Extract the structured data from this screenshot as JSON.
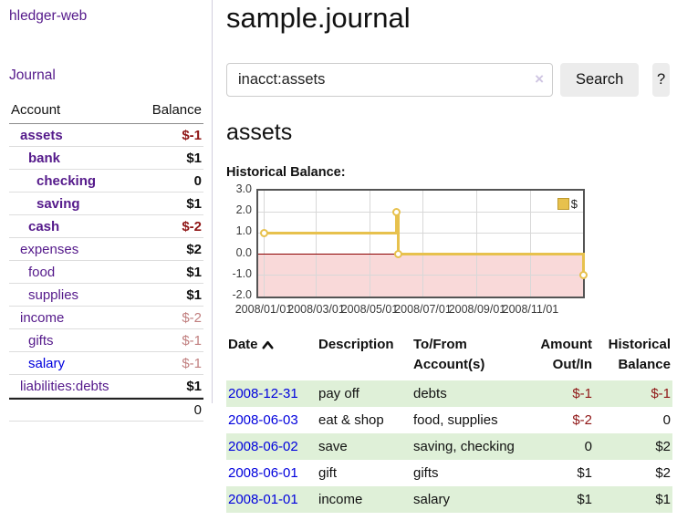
{
  "app_title": "hledger-web",
  "sidebar": {
    "journal_link": "Journal",
    "accounts": {
      "col_account": "Account",
      "col_balance": "Balance",
      "rows": [
        {
          "name": "assets",
          "balance": "$-1"
        },
        {
          "name": "bank",
          "balance": "$1"
        },
        {
          "name": "checking",
          "balance": "0"
        },
        {
          "name": "saving",
          "balance": "$1"
        },
        {
          "name": "cash",
          "balance": "$-2"
        },
        {
          "name": "expenses",
          "balance": "$2"
        },
        {
          "name": "food",
          "balance": "$1"
        },
        {
          "name": "supplies",
          "balance": "$1"
        },
        {
          "name": "income",
          "balance": "$-2"
        },
        {
          "name": "gifts",
          "balance": "$-1"
        },
        {
          "name": "salary",
          "balance": "$-1"
        },
        {
          "name": "liabilities:debts",
          "balance": "$1"
        }
      ],
      "total": "0"
    }
  },
  "main": {
    "page_title": "sample.journal",
    "search": {
      "value": "inacct:assets",
      "clear_icon": "×",
      "search_button": "Search",
      "help_button": "?"
    },
    "account_heading": "assets",
    "section_label": "Historical Balance:"
  },
  "chart_data": {
    "type": "line",
    "step": true,
    "title": "",
    "xlabel": "",
    "ylabel": "",
    "legend": "$",
    "legend_position": "top-right",
    "grid": true,
    "series": [
      {
        "name": "$",
        "color": "#e7c14d",
        "points": [
          {
            "x": "2008-01-01",
            "y": 1
          },
          {
            "x": "2008-06-01",
            "y": 2
          },
          {
            "x": "2008-06-03",
            "y": 0
          },
          {
            "x": "2008-12-31",
            "y": -1
          }
        ]
      }
    ],
    "xlim": [
      "2008-01-01",
      "2008-12-31"
    ],
    "ylim": [
      -2,
      3
    ],
    "yticks": [
      "3.0",
      "2.0",
      "1.0",
      "0.0",
      "-1.0",
      "-2.0"
    ],
    "ytick_values": [
      3,
      2,
      1,
      0,
      -1,
      -2
    ],
    "xticks": [
      "2008/01/01",
      "2008/03/01",
      "2008/05/01",
      "2008/07/01",
      "2008/09/01",
      "2008/11/01"
    ],
    "negative_region_color": "#f9d9d9",
    "zero_line_color": "#8b0000",
    "grid_color": "#d8d8d8"
  },
  "register": {
    "headers": {
      "date": "Date",
      "description": "Description",
      "tofrom": "To/From Account(s)",
      "amount": "Amount Out/In",
      "balance": "Historical Balance"
    },
    "rows": [
      {
        "date": "2008-12-31",
        "description": "pay off",
        "accounts": "debts",
        "amount": "$-1",
        "balance": "$-1"
      },
      {
        "date": "2008-06-03",
        "description": "eat & shop",
        "accounts": "food, supplies",
        "amount": "$-2",
        "balance": "0"
      },
      {
        "date": "2008-06-02",
        "description": "save",
        "accounts": "saving, checking",
        "amount": "0",
        "balance": "$2"
      },
      {
        "date": "2008-06-01",
        "description": "gift",
        "accounts": "gifts",
        "amount": "$1",
        "balance": "$2"
      },
      {
        "date": "2008-01-01",
        "description": "income",
        "accounts": "salary",
        "amount": "$1",
        "balance": "$1"
      }
    ]
  }
}
